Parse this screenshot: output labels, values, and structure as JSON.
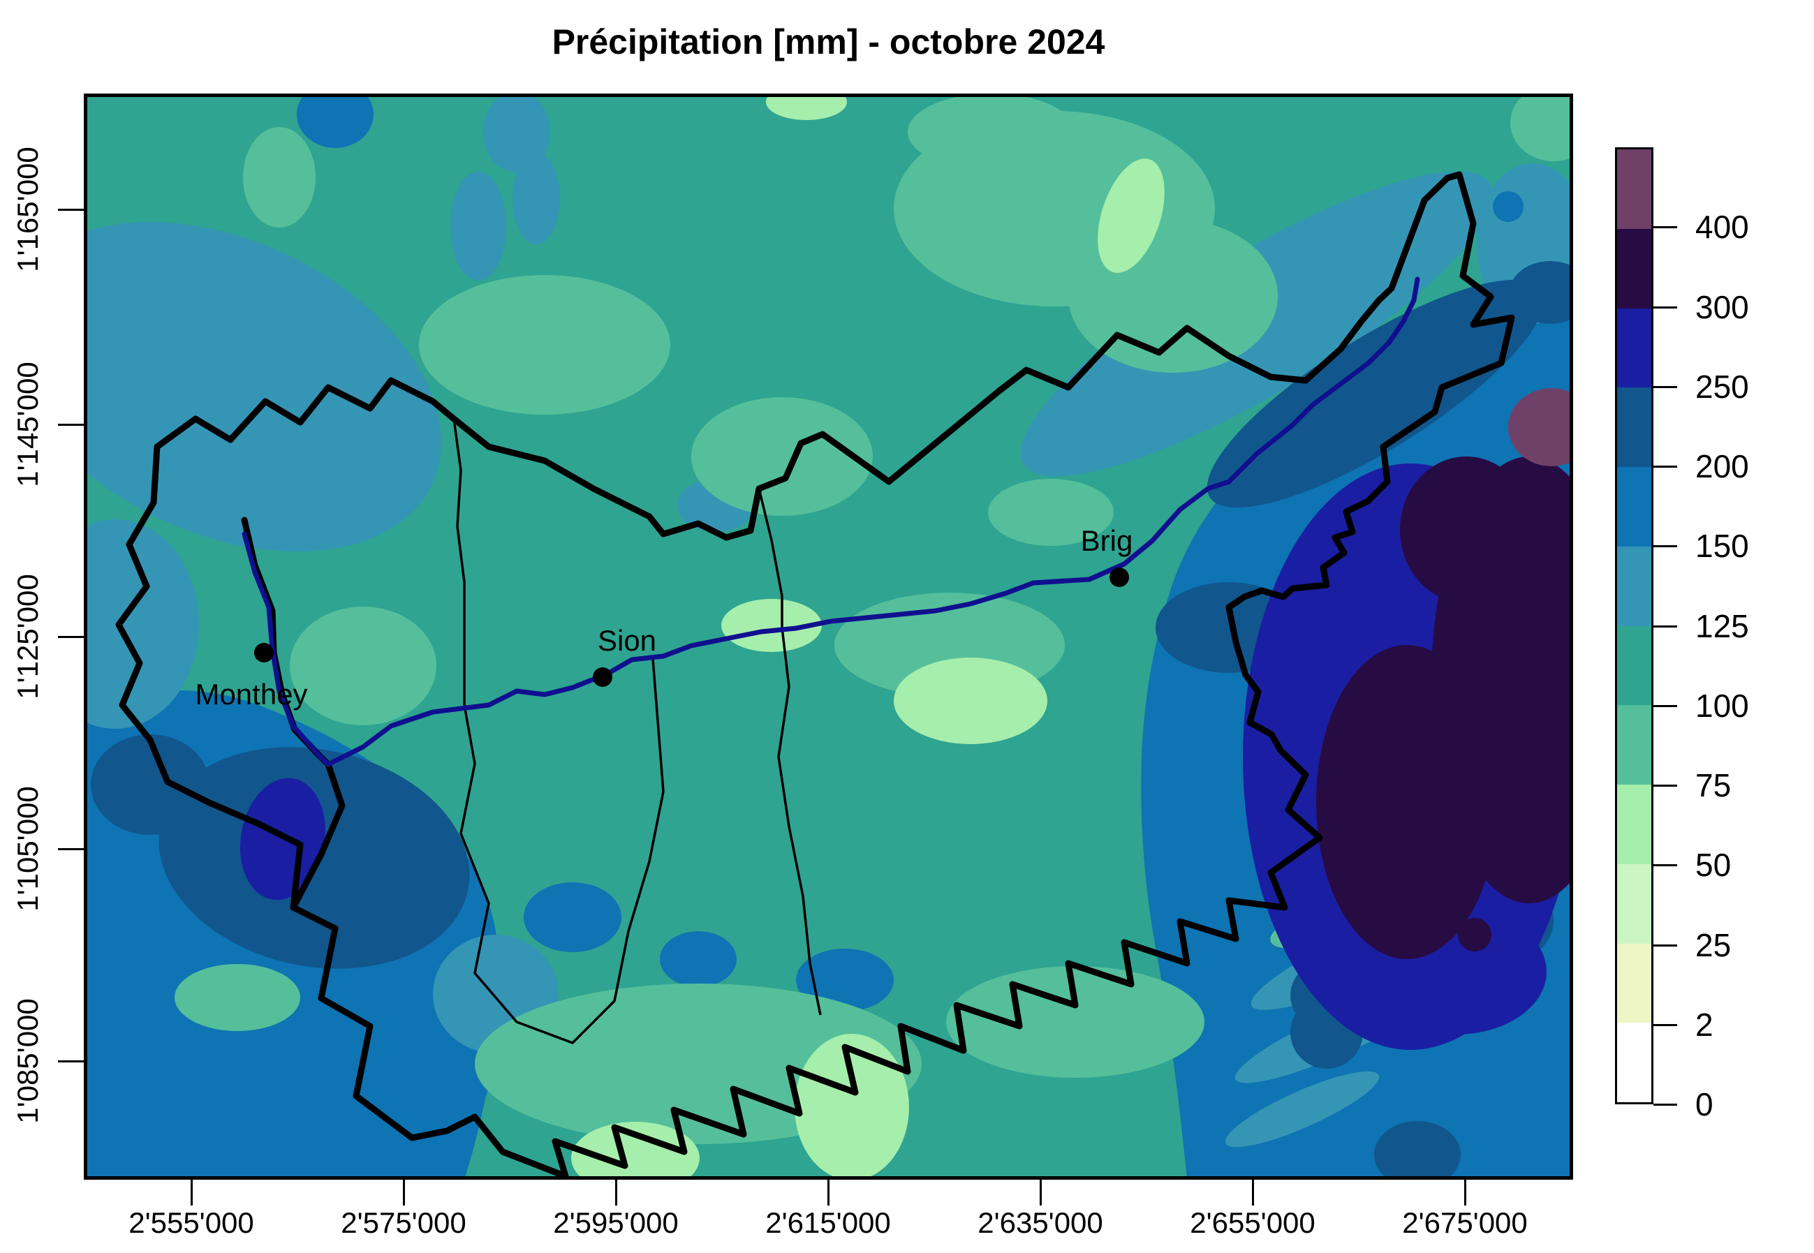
{
  "title": "Précipitation [mm] - octobre 2024",
  "axes": {
    "x": {
      "tick_labels": [
        "2'555'000",
        "2'575'000",
        "2'595'000",
        "2'615'000",
        "2'635'000",
        "2'655'000",
        "2'675'000"
      ]
    },
    "y": {
      "tick_labels": [
        "1'165'000",
        "1'145'000",
        "1'125'000",
        "1'105'000",
        "1'085'000"
      ]
    }
  },
  "legend": {
    "tick_labels": [
      "400",
      "300",
      "250",
      "200",
      "150",
      "125",
      "100",
      "75",
      "50",
      "25",
      "2",
      "0"
    ],
    "cells": [
      "#6F4169",
      "#270B43",
      "#1A1EA2",
      "#11568D",
      "#0E74B3",
      "#3595B5",
      "#2FA491",
      "#55BF9B",
      "#A6EEAC",
      "#CCF5C4",
      "#EEF5C6",
      "#FFFFFF"
    ]
  },
  "map": {
    "cities": [
      {
        "name": "Monthey"
      },
      {
        "name": "Sion"
      },
      {
        "name": "Brig"
      }
    ],
    "river_color": "#10108F",
    "boundary_color": "#000000",
    "marker_color": "#000000",
    "frame_color": "#000000"
  }
}
